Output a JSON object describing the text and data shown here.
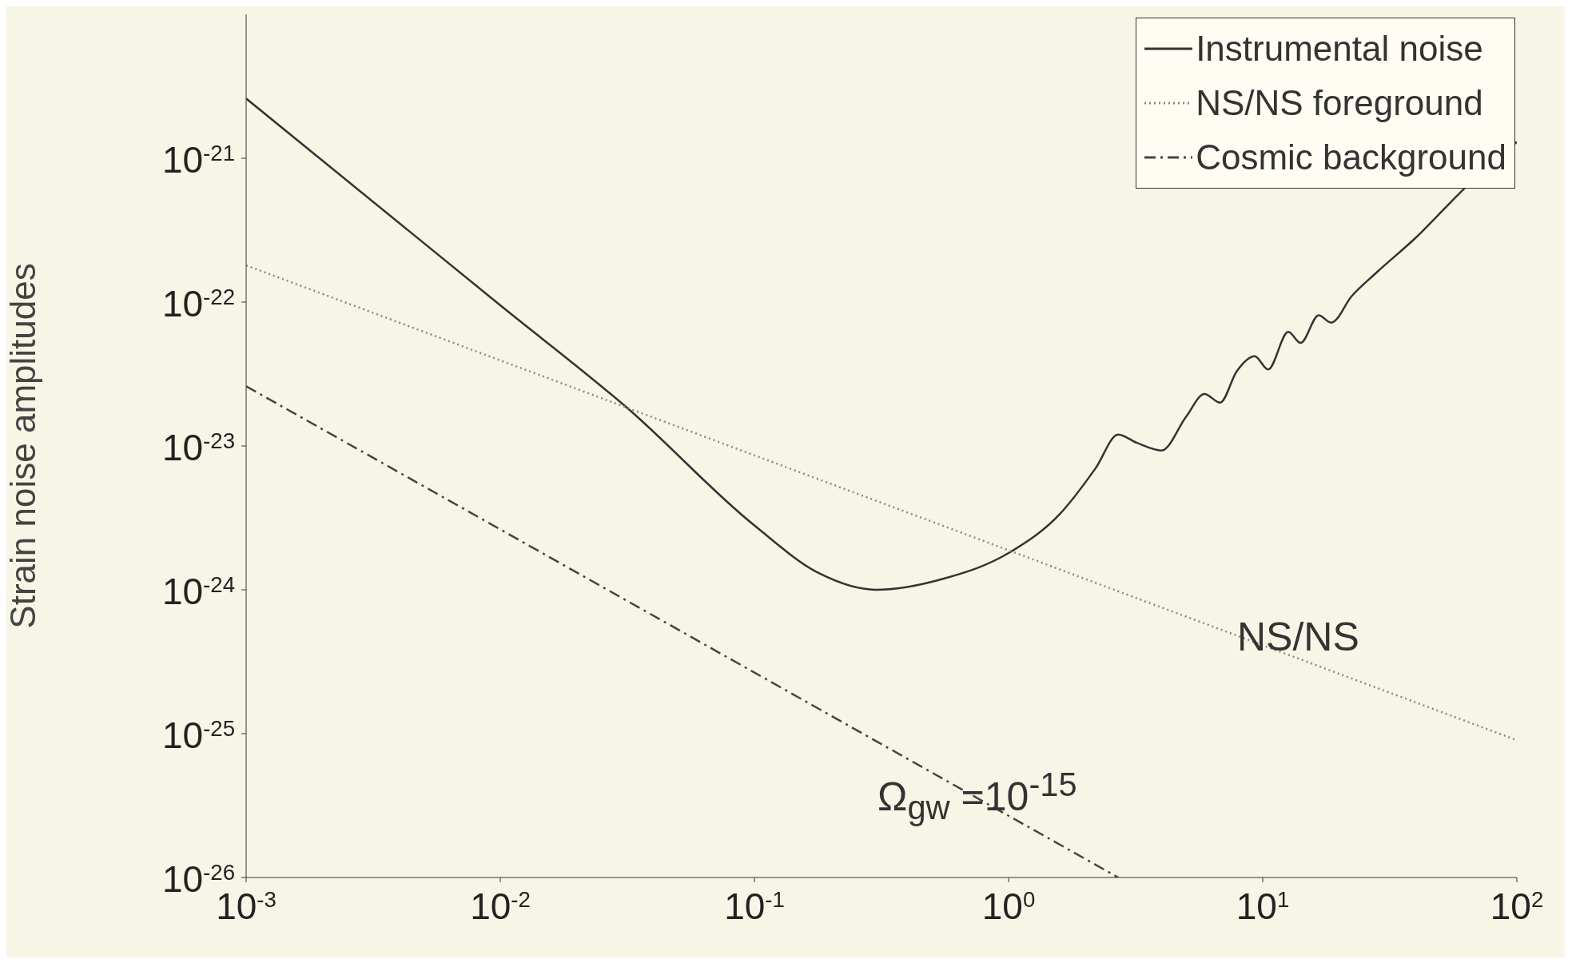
{
  "chart_data": {
    "type": "line",
    "ylabel": "Strain noise amplitudes",
    "log": "xy",
    "grid": false,
    "legend": "top right",
    "xlim": [
      0.001,
      100
    ],
    "ylim": [
      1e-26,
      1e-20
    ],
    "xticks": [
      {
        "value": 0.001,
        "label": "10$^{-3}$"
      },
      {
        "value": 0.01,
        "label": "10$^{-2}$"
      },
      {
        "value": 0.1,
        "label": "10$^{-1}$"
      },
      {
        "value": 1,
        "label": "10$^{0}$"
      },
      {
        "value": 10,
        "label": "10$^{1}$"
      },
      {
        "value": 100,
        "label": "10$^{2}$"
      }
    ],
    "yticks": [
      {
        "value": 1e-26,
        "label": "10$^{-26}$"
      },
      {
        "value": 1e-25,
        "label": "10$^{-25}$"
      },
      {
        "value": 1e-24,
        "label": "10$^{-24}$"
      },
      {
        "value": 1e-23,
        "label": "10$^{-23}$"
      },
      {
        "value": 1e-22,
        "label": "10$^{-22}$"
      },
      {
        "value": 1e-21,
        "label": "10$^{-21}$"
      }
    ],
    "series": [
      {
        "name": "Instrumental noise",
        "color": "#333333",
        "line_style": "solid",
        "x": [
          0.001,
          0.01,
          0.032,
          0.1,
          0.18,
          0.3,
          0.56,
          1,
          1.6,
          2.2,
          2.7,
          3.2,
          4,
          5,
          5.9,
          6.8,
          7.9,
          9.3,
          10.5,
          12.6,
          14.1,
          16.6,
          18.6,
          22.4,
          28,
          40,
          63,
          100
        ],
        "values": [
          2.6e-21,
          9.5e-23,
          1.8e-23,
          2.8e-24,
          1.3e-24,
          1e-24,
          1.2e-24,
          1.8e-24,
          3.4e-24,
          7e-24,
          1.2e-23,
          1.05e-23,
          9.3e-24,
          1.6e-23,
          2.3e-23,
          2e-23,
          3.3e-23,
          4.2e-23,
          3.4e-23,
          6.2e-23,
          5.2e-23,
          8.1e-23,
          7.2e-23,
          1.1e-22,
          1.6e-22,
          2.8e-22,
          6.3e-22,
          1.3e-21
        ]
      },
      {
        "name": "NS/NS foreground",
        "color": "#8a8a7a",
        "line_style": "dotted",
        "x": [
          0.001,
          100
        ],
        "values": [
          1.8e-22,
          9e-26
        ]
      },
      {
        "name": "Cosmic background",
        "color": "#444444",
        "line_style": "dashed",
        "x": [
          0.001,
          2.7
        ],
        "values": [
          2.6e-23,
          1e-26
        ]
      }
    ],
    "annotations": [
      "NS/NS",
      "Ω$_{gw}$ =10$^{-15}$"
    ]
  }
}
